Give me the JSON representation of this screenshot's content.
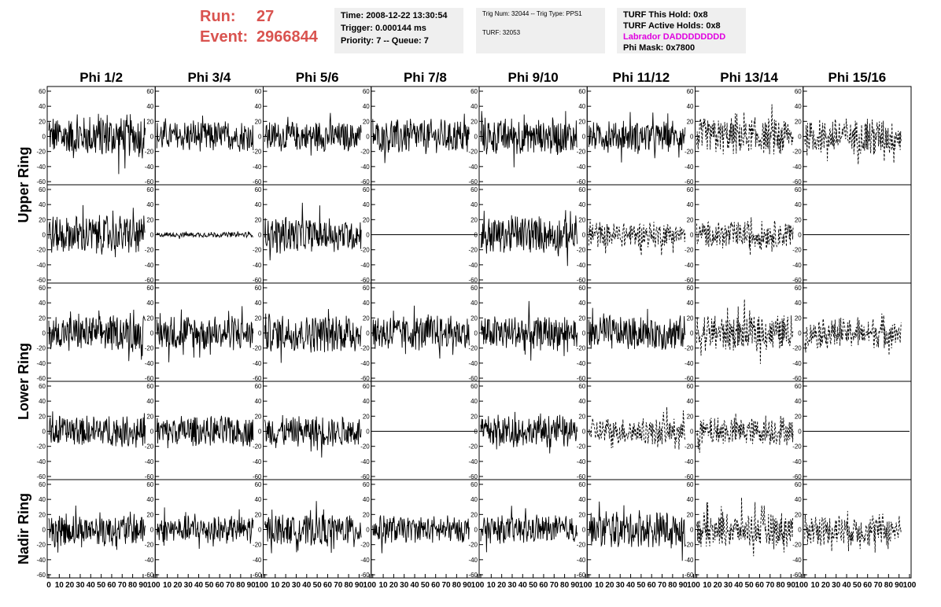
{
  "run": {
    "run_label": "Run:",
    "run_value": "27",
    "event_label": "Event:",
    "event_value": "2966844"
  },
  "info1": {
    "time": "Time: 2008-12-22 13:30:54",
    "trigger": "Trigger: 0.000144 ms",
    "priority": "Priority: 7 -- Queue: 7"
  },
  "info2": {
    "trig": "Trig Num: 32044 -- Trig Type: PPS1",
    "turf": "TURF: 32053"
  },
  "info3": {
    "hold": "TURF This Hold: 0x8",
    "active": "TURF Active Holds: 0x8",
    "labrador": "Labrador DADDDDDDDD",
    "phimask": "Phi Mask: 0x7800"
  },
  "colors": {
    "run_text": "#d9534f",
    "labrador": "#e000e0",
    "info_bg": "#efefef"
  },
  "chart_data": {
    "type": "line",
    "columns": [
      "Phi 1/2",
      "Phi 3/4",
      "Phi 5/6",
      "Phi 7/8",
      "Phi 9/10",
      "Phi 11/12",
      "Phi 13/14",
      "Phi 15/16"
    ],
    "rows": [
      "Upper Ring",
      "Upper Ring",
      "Lower Ring",
      "Lower Ring",
      "Nadir Ring"
    ],
    "row_labels": [
      "Upper Ring",
      "Lower Ring",
      "Nadir Ring"
    ],
    "xlim": [
      0,
      100
    ],
    "ylim": [
      -60,
      60
    ],
    "y_ticks": [
      -60,
      -40,
      -20,
      0,
      20,
      40,
      60
    ],
    "x_ticks": [
      0,
      10,
      20,
      30,
      40,
      50,
      60,
      70,
      80,
      90,
      100
    ],
    "amplitude": [
      [
        25,
        18,
        18,
        20,
        22,
        18,
        22,
        22
      ],
      [
        22,
        3,
        20,
        0,
        22,
        15,
        16,
        0
      ],
      [
        20,
        20,
        22,
        20,
        20,
        20,
        22,
        18
      ],
      [
        18,
        18,
        18,
        0,
        18,
        15,
        16,
        0
      ],
      [
        20,
        16,
        18,
        16,
        16,
        20,
        20,
        18
      ]
    ],
    "dashed": [
      [
        false,
        false,
        false,
        false,
        false,
        false,
        true,
        true
      ],
      [
        false,
        false,
        false,
        false,
        false,
        true,
        true,
        false
      ],
      [
        false,
        false,
        false,
        false,
        false,
        false,
        true,
        true
      ],
      [
        false,
        false,
        false,
        false,
        false,
        true,
        true,
        false
      ],
      [
        false,
        false,
        false,
        false,
        false,
        false,
        true,
        true
      ]
    ]
  }
}
